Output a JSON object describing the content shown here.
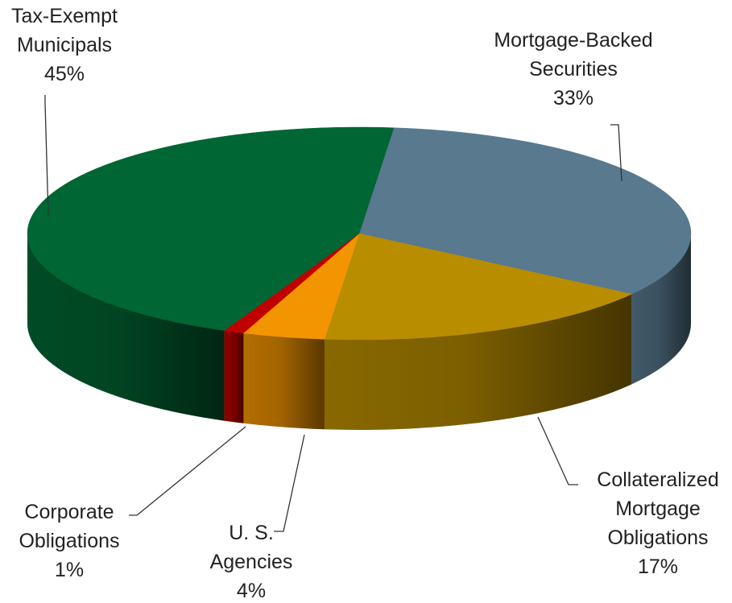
{
  "chart_data": {
    "type": "pie",
    "title": "",
    "style": "3d",
    "legend": "none",
    "slices": [
      {
        "label_lines": [
          "Mortgage-Backed",
          "Securities"
        ],
        "pct_label": "33%",
        "value": 33,
        "color": "#58798e"
      },
      {
        "label_lines": [
          "Collateralized",
          "Mortgage",
          "Obligations"
        ],
        "pct_label": "17%",
        "value": 17,
        "color": "#b88d00"
      },
      {
        "label_lines": [
          "U. S.",
          "Agencies"
        ],
        "pct_label": "4%",
        "value": 4,
        "color": "#f39500"
      },
      {
        "label_lines": [
          "Corporate",
          "Obligations"
        ],
        "pct_label": "1%",
        "value": 1,
        "color": "#c00000"
      },
      {
        "label_lines": [
          "Tax-Exempt",
          "Municipals"
        ],
        "pct_label": "45%",
        "value": 45,
        "color": "#006633"
      }
    ]
  }
}
